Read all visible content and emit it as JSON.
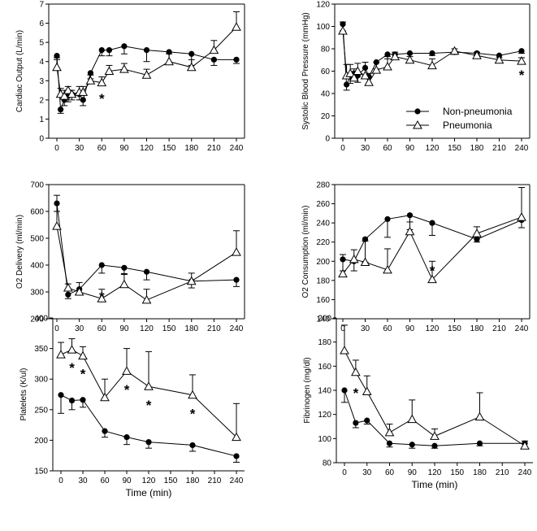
{
  "figure": {
    "legend": {
      "non_pneumonia": "Non-pneumonia",
      "pneumonia": "Pneumonia"
    },
    "x_axis_label": "Time (min)"
  },
  "chart_data": [
    {
      "id": "cardiac-output",
      "type": "line",
      "ylabel": "Cardiac Output (L/min)",
      "xlim": [
        0,
        240
      ],
      "ylim": [
        0,
        7
      ],
      "xticks": [
        0,
        30,
        60,
        90,
        120,
        150,
        180,
        210,
        240
      ],
      "yticks": [
        0,
        1,
        2,
        3,
        4,
        5,
        6,
        7
      ],
      "xlabel": "",
      "series": [
        {
          "name": "Non-pneumonia",
          "marker": "filled-circle",
          "x": [
            0,
            5,
            10,
            15,
            20,
            30,
            35,
            45,
            60,
            70,
            90,
            120,
            150,
            180,
            210,
            240
          ],
          "y": [
            4.3,
            1.5,
            2.0,
            2.2,
            2.3,
            2.3,
            2.0,
            3.4,
            4.6,
            4.6,
            4.8,
            4.6,
            4.5,
            4.4,
            4.1,
            4.1
          ],
          "err": [
            0.2,
            0.2,
            0.3,
            0.3,
            0.3,
            0.3,
            0.3,
            0.3,
            0.3,
            0.3,
            0.4,
            0.6,
            0.6,
            0.6,
            0.3,
            0.2
          ]
        },
        {
          "name": "Pneumonia",
          "marker": "open-triangle",
          "x": [
            0,
            5,
            10,
            15,
            20,
            30,
            35,
            45,
            60,
            70,
            90,
            120,
            150,
            180,
            210,
            240
          ],
          "y": [
            3.7,
            2.3,
            2.2,
            2.5,
            2.3,
            2.4,
            2.4,
            3.0,
            2.9,
            3.5,
            3.6,
            3.3,
            4.0,
            3.7,
            4.6,
            5.8
          ],
          "err": [
            0.5,
            0.3,
            0.3,
            0.2,
            0.2,
            0.3,
            0.3,
            0.3,
            0.3,
            0.3,
            0.3,
            0.3,
            0.4,
            0.4,
            0.5,
            0.8
          ]
        }
      ],
      "annotations": [
        {
          "text": "*",
          "x": 60,
          "y": 2.2
        }
      ]
    },
    {
      "id": "systolic-pressure",
      "type": "line",
      "ylabel": "Systolic Blood Pressure (mmHg)",
      "xlim": [
        0,
        240
      ],
      "ylim": [
        0,
        120
      ],
      "xticks": [
        0,
        30,
        60,
        90,
        120,
        150,
        180,
        210,
        240
      ],
      "yticks": [
        0,
        20,
        40,
        60,
        80,
        100,
        120
      ],
      "xlabel": "",
      "series": [
        {
          "name": "Non-pneumonia",
          "marker": "filled-circle",
          "x": [
            0,
            5,
            10,
            15,
            20,
            30,
            35,
            45,
            60,
            70,
            90,
            120,
            150,
            180,
            210,
            240
          ],
          "y": [
            102,
            48,
            55,
            58,
            56,
            63,
            55,
            68,
            75,
            75,
            76,
            76,
            77,
            76,
            74,
            78
          ],
          "err": [
            6,
            5,
            6,
            6,
            6,
            7,
            6,
            6,
            4,
            3,
            3,
            2,
            2,
            2,
            2,
            2
          ]
        },
        {
          "name": "Pneumonia",
          "marker": "open-triangle",
          "x": [
            0,
            5,
            10,
            15,
            20,
            30,
            35,
            45,
            60,
            70,
            90,
            120,
            150,
            180,
            210,
            240
          ],
          "y": [
            96,
            56,
            58,
            54,
            60,
            56,
            50,
            61,
            64,
            73,
            70,
            65,
            78,
            74,
            70,
            69
          ],
          "err": [
            8,
            10,
            8,
            8,
            7,
            12,
            8,
            7,
            9,
            4,
            6,
            6,
            2,
            3,
            2,
            3
          ]
        }
      ],
      "annotations": [
        {
          "text": "*",
          "x": 240,
          "y": 59
        }
      ]
    },
    {
      "id": "o2-delivery",
      "type": "line",
      "ylabel": "O2 Delivery (ml/min)",
      "xlim": [
        0,
        240
      ],
      "ylim": [
        200,
        700
      ],
      "xticks": [
        0,
        30,
        60,
        90,
        120,
        150,
        180,
        210,
        240
      ],
      "yticks": [
        200,
        300,
        400,
        500,
        600,
        700
      ],
      "xlabel": "",
      "series": [
        {
          "name": "Non-pneumonia",
          "marker": "filled-circle",
          "x": [
            0,
            15,
            30,
            60,
            90,
            120,
            180,
            240
          ],
          "y": [
            630,
            290,
            310,
            400,
            390,
            375,
            340,
            345
          ],
          "err": [
            30,
            15,
            20,
            30,
            25,
            30,
            25,
            25
          ]
        },
        {
          "name": "Pneumonia",
          "marker": "open-triangle",
          "x": [
            0,
            15,
            30,
            60,
            90,
            120,
            180,
            240
          ],
          "y": [
            545,
            315,
            300,
            275,
            328,
            270,
            340,
            448
          ],
          "err": [
            115,
            15,
            35,
            35,
            40,
            40,
            30,
            80
          ]
        }
      ],
      "annotations": [
        {
          "text": "*",
          "x": 60,
          "y": 292
        }
      ]
    },
    {
      "id": "o2-consumption",
      "type": "line",
      "ylabel": "O2 Consumption (ml/min)",
      "xlim": [
        0,
        240
      ],
      "ylim": [
        140,
        280
      ],
      "xticks": [
        0,
        30,
        60,
        90,
        120,
        150,
        180,
        210,
        240
      ],
      "yticks": [
        140,
        160,
        180,
        200,
        220,
        240,
        260,
        280
      ],
      "xlabel": "",
      "series": [
        {
          "name": "Non-pneumonia",
          "marker": "filled-circle",
          "x": [
            0,
            15,
            30,
            60,
            90,
            120,
            180,
            240
          ],
          "y": [
            202,
            200,
            223,
            244,
            248,
            240,
            223,
            243
          ],
          "err": [
            12,
            10,
            24,
            19,
            15,
            13,
            3,
            8
          ]
        },
        {
          "name": "Pneumonia",
          "marker": "open-triangle",
          "x": [
            0,
            15,
            30,
            60,
            90,
            120,
            180,
            240
          ],
          "y": [
            187,
            202,
            199,
            191,
            231,
            181,
            229,
            246
          ],
          "err": [
            20,
            10,
            22,
            22,
            10,
            19,
            7,
            31
          ]
        }
      ],
      "annotations": [
        {
          "text": "*",
          "x": 120,
          "y": 193
        }
      ]
    },
    {
      "id": "platelets",
      "type": "line",
      "ylabel": "Platelets (K/ul)",
      "xlim": [
        0,
        240
      ],
      "ylim": [
        150,
        400
      ],
      "xticks": [
        0,
        30,
        60,
        90,
        120,
        150,
        180,
        210,
        240
      ],
      "yticks": [
        150,
        200,
        250,
        300,
        350,
        400
      ],
      "xlabel": "Time (min)",
      "series": [
        {
          "name": "Non-pneumonia",
          "marker": "filled-circle",
          "x": [
            0,
            15,
            30,
            60,
            90,
            120,
            180,
            240
          ],
          "y": [
            274,
            265,
            266,
            215,
            205,
            197,
            192,
            174
          ],
          "err": [
            30,
            15,
            12,
            10,
            12,
            10,
            10,
            10
          ]
        },
        {
          "name": "Pneumonia",
          "marker": "open-triangle",
          "x": [
            0,
            15,
            30,
            60,
            90,
            120,
            180,
            240
          ],
          "y": [
            340,
            348,
            338,
            270,
            313,
            288,
            274,
            205
          ],
          "err": [
            20,
            18,
            15,
            30,
            37,
            57,
            33,
            55
          ]
        }
      ],
      "annotations": [
        {
          "text": "*",
          "x": 15,
          "y": 323
        },
        {
          "text": "*",
          "x": 30,
          "y": 313
        },
        {
          "text": "*",
          "x": 90,
          "y": 287
        },
        {
          "text": "*",
          "x": 120,
          "y": 262
        },
        {
          "text": "*",
          "x": 180,
          "y": 248
        }
      ]
    },
    {
      "id": "fibrinogen",
      "type": "line",
      "ylabel": "Fibrinogen (mg/dl)",
      "xlim": [
        0,
        240
      ],
      "ylim": [
        80,
        200
      ],
      "xticks": [
        0,
        30,
        60,
        90,
        120,
        150,
        180,
        210,
        240
      ],
      "yticks": [
        80,
        100,
        120,
        140,
        160,
        180,
        200
      ],
      "xlabel": "Time (min)",
      "series": [
        {
          "name": "Non-pneumonia",
          "marker": "filled-circle",
          "x": [
            0,
            15,
            30,
            60,
            90,
            120,
            180,
            240
          ],
          "y": [
            140,
            113,
            115,
            96,
            95,
            94,
            96,
            96
          ],
          "err": [
            10,
            4,
            3,
            3,
            3,
            2,
            2,
            3
          ]
        },
        {
          "name": "Pneumonia",
          "marker": "open-triangle",
          "x": [
            0,
            15,
            30,
            60,
            90,
            120,
            180,
            240
          ],
          "y": [
            173,
            155,
            139,
            105,
            116,
            102,
            118,
            94
          ],
          "err": [
            21,
            10,
            13,
            7,
            16,
            6,
            20,
            4
          ]
        }
      ],
      "annotations": [
        {
          "text": "*",
          "x": 15,
          "y": 140
        }
      ]
    }
  ]
}
